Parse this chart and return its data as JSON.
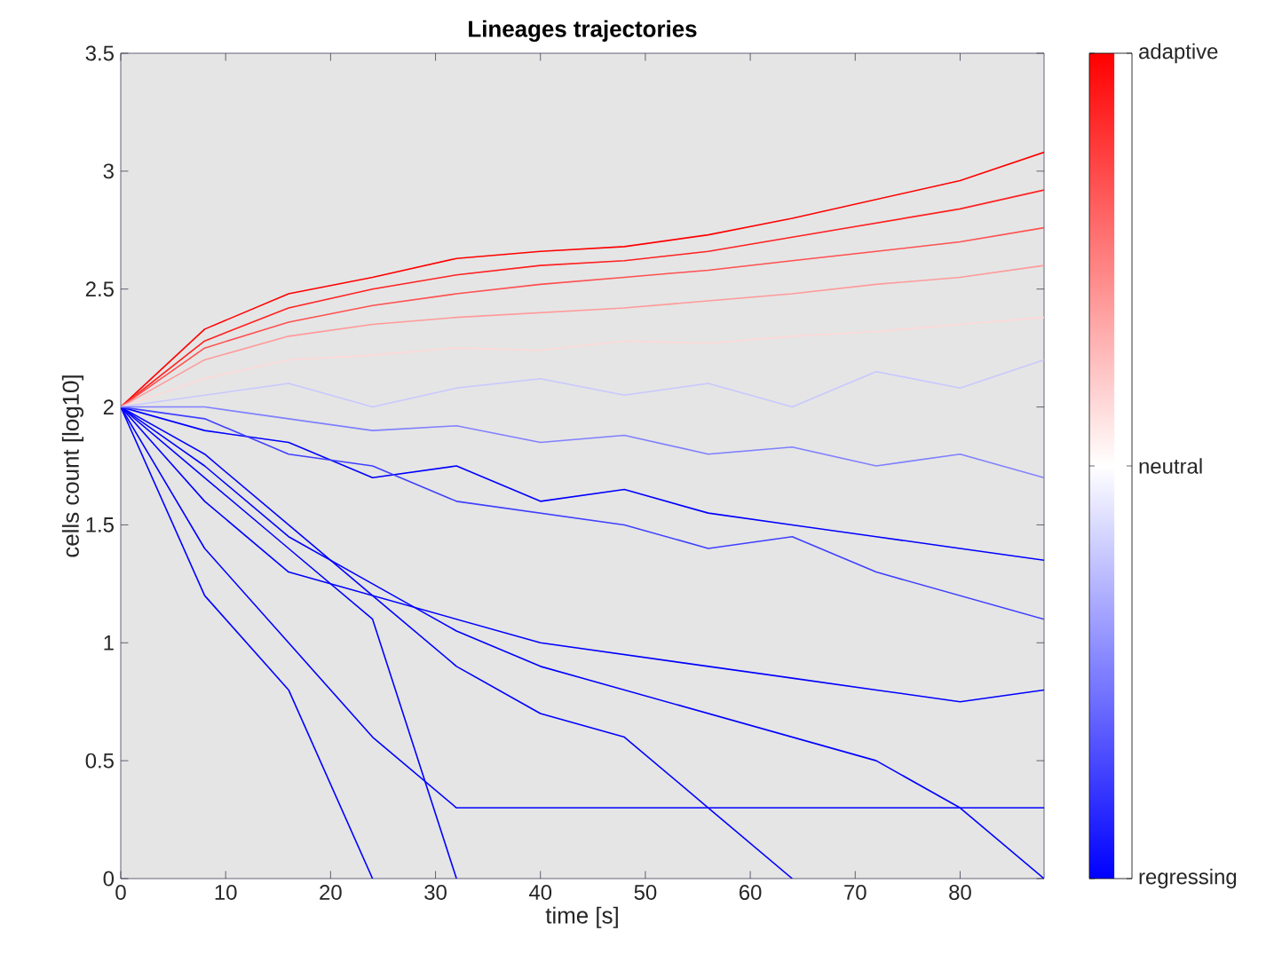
{
  "chart_data": {
    "type": "line",
    "title": "Lineages trajectories",
    "xlabel": "time [s]",
    "ylabel": "cells count [log10]",
    "x": [
      0,
      8,
      16,
      24,
      32,
      40,
      48,
      56,
      64,
      72,
      80,
      88
    ],
    "series": [
      {
        "color": "#ff0000",
        "values": [
          2,
          2.33,
          2.48,
          2.55,
          2.63,
          2.66,
          2.68,
          2.73,
          2.8,
          2.88,
          2.96,
          3.08
        ]
      },
      {
        "color": "#ff2020",
        "values": [
          2,
          2.28,
          2.42,
          2.5,
          2.56,
          2.6,
          2.62,
          2.66,
          2.72,
          2.78,
          2.84,
          2.92
        ]
      },
      {
        "color": "#ff5050",
        "values": [
          2,
          2.25,
          2.36,
          2.43,
          2.48,
          2.52,
          2.55,
          2.58,
          2.62,
          2.66,
          2.7,
          2.76
        ]
      },
      {
        "color": "#ff9a9a",
        "values": [
          2,
          2.2,
          2.3,
          2.35,
          2.38,
          2.4,
          2.42,
          2.45,
          2.48,
          2.52,
          2.55,
          2.6
        ]
      },
      {
        "color": "#ffd8d8",
        "values": [
          2,
          2.12,
          2.2,
          2.22,
          2.25,
          2.24,
          2.28,
          2.27,
          2.3,
          2.32,
          2.35,
          2.38
        ]
      },
      {
        "color": "#c8c8ff",
        "values": [
          2,
          2.05,
          2.1,
          2.0,
          2.08,
          2.12,
          2.05,
          2.1,
          2.0,
          2.15,
          2.08,
          2.2
        ]
      },
      {
        "color": "#0000ff",
        "values": [
          2,
          1.9,
          1.85,
          1.7,
          1.75,
          1.6,
          1.65,
          1.55,
          1.5,
          1.45,
          1.4,
          1.35
        ]
      },
      {
        "color": "#0000ff",
        "values": [
          2,
          1.6,
          1.3,
          1.2,
          1.1,
          1.0,
          0.95,
          0.9,
          0.85,
          0.8,
          0.75,
          0.8
        ]
      },
      {
        "color": "#0000ff",
        "values": [
          2,
          1.2,
          0.8,
          0,
          null,
          null,
          null,
          null,
          null,
          null,
          null,
          null
        ]
      },
      {
        "color": "#0000ff",
        "values": [
          2,
          1.4,
          1.0,
          0.6,
          0.3,
          0.3,
          0.3,
          0.3,
          0.3,
          0.3,
          0.3,
          0.3
        ]
      },
      {
        "color": "#0000ff",
        "values": [
          2,
          1.8,
          1.5,
          1.2,
          0.9,
          0.7,
          0.6,
          0.3,
          0,
          null,
          null,
          null
        ]
      },
      {
        "color": "#0000ff",
        "values": [
          2,
          1.7,
          1.4,
          1.1,
          0,
          null,
          null,
          null,
          null,
          null,
          null,
          null
        ]
      },
      {
        "color": "#0000ff",
        "values": [
          2,
          1.75,
          1.45,
          1.25,
          1.05,
          0.9,
          0.8,
          0.7,
          0.6,
          0.5,
          0.3,
          0
        ]
      },
      {
        "color": "#4040ff",
        "values": [
          2,
          1.95,
          1.8,
          1.75,
          1.6,
          1.55,
          1.5,
          1.4,
          1.45,
          1.3,
          1.2,
          1.1
        ]
      },
      {
        "color": "#8080ff",
        "values": [
          2,
          2.0,
          1.95,
          1.9,
          1.92,
          1.85,
          1.88,
          1.8,
          1.83,
          1.75,
          1.8,
          1.7
        ]
      }
    ],
    "xlim": [
      0,
      88
    ],
    "ylim": [
      0,
      3.5
    ],
    "xticks": [
      0,
      10,
      20,
      30,
      40,
      50,
      60,
      70,
      80
    ],
    "yticks": [
      0,
      0.5,
      1,
      1.5,
      2,
      2.5,
      3,
      3.5
    ],
    "clim": [
      -1,
      1
    ],
    "cticks": [
      {
        "value": -1,
        "label": "regressing"
      },
      {
        "value": 0,
        "label": "neutral"
      },
      {
        "value": 1,
        "label": "adaptive"
      }
    ],
    "marker": "none",
    "line_style": "solid"
  }
}
